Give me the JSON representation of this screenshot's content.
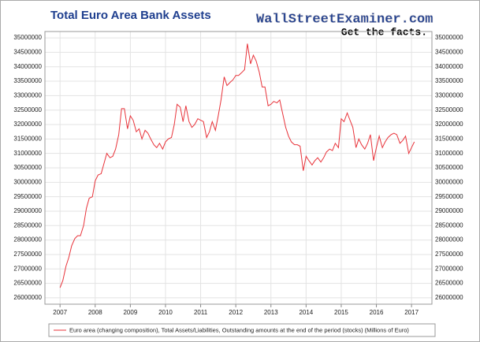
{
  "chart_data": {
    "type": "line",
    "title": "Total Euro Area Bank Assets",
    "logo": {
      "name": "WallStreetExaminer.com",
      "tagline": "Get the facts."
    },
    "xlim": [
      2006.57,
      2017.58
    ],
    "xticks": [
      2007,
      2008,
      2009,
      2010,
      2011,
      2012,
      2013,
      2014,
      2015,
      2016,
      2017
    ],
    "ylim": [
      25780000,
      35220000
    ],
    "yticks": [
      26000000,
      26500000,
      27000000,
      27500000,
      28000000,
      28500000,
      29000000,
      29500000,
      30000000,
      30500000,
      31000000,
      31500000,
      32000000,
      32500000,
      33000000,
      33500000,
      34000000,
      34500000,
      35000000
    ],
    "grid": true,
    "legend_position": "bottom",
    "x": [
      2007.0,
      2007.08,
      2007.17,
      2007.25,
      2007.33,
      2007.42,
      2007.5,
      2007.58,
      2007.67,
      2007.75,
      2007.83,
      2007.92,
      2008.0,
      2008.08,
      2008.17,
      2008.25,
      2008.33,
      2008.42,
      2008.5,
      2008.58,
      2008.67,
      2008.75,
      2008.83,
      2008.92,
      2009.0,
      2009.08,
      2009.17,
      2009.25,
      2009.33,
      2009.42,
      2009.5,
      2009.58,
      2009.67,
      2009.75,
      2009.83,
      2009.92,
      2010.0,
      2010.08,
      2010.17,
      2010.25,
      2010.33,
      2010.42,
      2010.5,
      2010.58,
      2010.67,
      2010.75,
      2010.83,
      2010.92,
      2011.0,
      2011.08,
      2011.17,
      2011.25,
      2011.33,
      2011.42,
      2011.5,
      2011.58,
      2011.67,
      2011.75,
      2011.83,
      2011.92,
      2012.0,
      2012.08,
      2012.17,
      2012.25,
      2012.33,
      2012.42,
      2012.5,
      2012.58,
      2012.67,
      2012.75,
      2012.83,
      2012.92,
      2013.0,
      2013.08,
      2013.17,
      2013.25,
      2013.33,
      2013.42,
      2013.5,
      2013.58,
      2013.67,
      2013.75,
      2013.83,
      2013.92,
      2014.0,
      2014.08,
      2014.17,
      2014.25,
      2014.33,
      2014.42,
      2014.5,
      2014.58,
      2014.67,
      2014.75,
      2014.83,
      2014.92,
      2015.0,
      2015.08,
      2015.17,
      2015.25,
      2015.33,
      2015.42,
      2015.5,
      2015.58,
      2015.67,
      2015.75,
      2015.83,
      2015.92,
      2016.0,
      2016.08,
      2016.17,
      2016.25,
      2016.33,
      2016.42,
      2016.5,
      2016.58,
      2016.67,
      2016.75,
      2016.83,
      2016.92,
      2017.0,
      2017.08
    ],
    "series": [
      {
        "name": "Euro area (changing composition), Total Assets/Liabilities, Outstanding amounts at the end of the period (stocks) (Millions of Euro)",
        "color": "#e8333a",
        "values": [
          26350000,
          26600000,
          27100000,
          27400000,
          27800000,
          28050000,
          28150000,
          28150000,
          28500000,
          29100000,
          29450000,
          29500000,
          30050000,
          30250000,
          30300000,
          30650000,
          31000000,
          30850000,
          30900000,
          31150000,
          31650000,
          32550000,
          32550000,
          31850000,
          32300000,
          32150000,
          31750000,
          31850000,
          31500000,
          31800000,
          31700000,
          31500000,
          31300000,
          31200000,
          31350000,
          31150000,
          31400000,
          31500000,
          31550000,
          32000000,
          32700000,
          32600000,
          32100000,
          32650000,
          32100000,
          31900000,
          32000000,
          32200000,
          32150000,
          32100000,
          31550000,
          31750000,
          32100000,
          31800000,
          32300000,
          32850000,
          33650000,
          33350000,
          33450000,
          33550000,
          33700000,
          33700000,
          33800000,
          33900000,
          34800000,
          34100000,
          34400000,
          34200000,
          33800000,
          33300000,
          33300000,
          32650000,
          32700000,
          32800000,
          32750000,
          32850000,
          32400000,
          31900000,
          31600000,
          31400000,
          31300000,
          31300000,
          31250000,
          30400000,
          30900000,
          30750000,
          30600000,
          30750000,
          30850000,
          30700000,
          30850000,
          31050000,
          31150000,
          31100000,
          31350000,
          31200000,
          32200000,
          32100000,
          32400000,
          32150000,
          31900000,
          31200000,
          31500000,
          31300000,
          31150000,
          31350000,
          31650000,
          30750000,
          31200000,
          31600000,
          31200000,
          31400000,
          31550000,
          31650000,
          31700000,
          31650000,
          31350000,
          31450000,
          31600000,
          31000000,
          31200000,
          31400000
        ]
      }
    ]
  }
}
